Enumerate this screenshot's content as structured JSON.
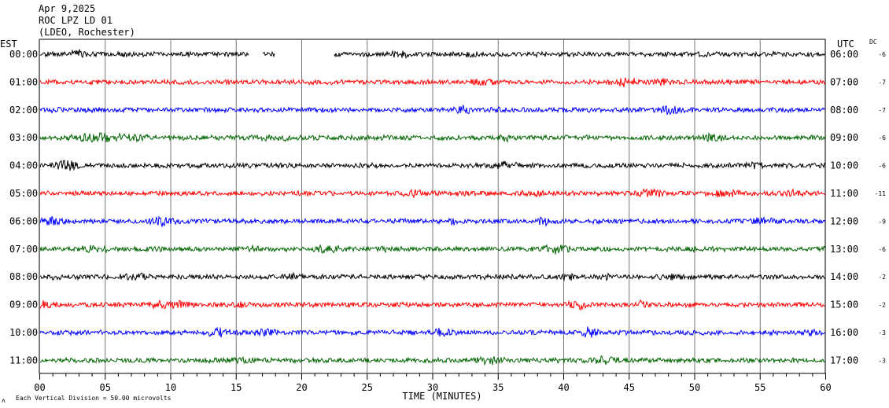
{
  "header": {
    "date": "Apr 9,2025",
    "station": "ROC LPZ LD 01",
    "network": "(LDEO, Rochester)"
  },
  "left_tz": "EST",
  "right_tz": "UTC",
  "dc_label": "DC",
  "footer": {
    "scale_note": "Each Vertical Division =   50.00 microvolts",
    "corner_mark": "ʌ"
  },
  "chart_data": {
    "type": "line",
    "title": "",
    "xlabel": "TIME (MINUTES)",
    "ylabel": "",
    "xlim": [
      0,
      60
    ],
    "x_ticks": [
      "00",
      "05",
      "10",
      "15",
      "20",
      "25",
      "30",
      "35",
      "40",
      "45",
      "50",
      "55",
      "60"
    ],
    "grid": true,
    "rows": [
      {
        "local": "00:00",
        "utc": "06:00",
        "dc": "-6",
        "color": "#000000",
        "gaps": [
          [
            16.0,
            17.0
          ],
          [
            18.0,
            22.5
          ]
        ]
      },
      {
        "local": "01:00",
        "utc": "07:00",
        "dc": "-7",
        "color": "#ff0000",
        "gaps": []
      },
      {
        "local": "02:00",
        "utc": "08:00",
        "dc": "-7",
        "color": "#0000ff",
        "gaps": []
      },
      {
        "local": "03:00",
        "utc": "09:00",
        "dc": "-6",
        "color": "#006400",
        "gaps": []
      },
      {
        "local": "04:00",
        "utc": "10:00",
        "dc": "-6",
        "color": "#000000",
        "gaps": []
      },
      {
        "local": "05:00",
        "utc": "11:00",
        "dc": "-11",
        "color": "#ff0000",
        "gaps": []
      },
      {
        "local": "06:00",
        "utc": "12:00",
        "dc": "-9",
        "color": "#0000ff",
        "gaps": []
      },
      {
        "local": "07:00",
        "utc": "13:00",
        "dc": "-6",
        "color": "#006400",
        "gaps": []
      },
      {
        "local": "08:00",
        "utc": "14:00",
        "dc": "-2",
        "color": "#000000",
        "gaps": []
      },
      {
        "local": "09:00",
        "utc": "15:00",
        "dc": "-2",
        "color": "#ff0000",
        "gaps": []
      },
      {
        "local": "10:00",
        "utc": "16:00",
        "dc": "-3",
        "color": "#0000ff",
        "gaps": []
      },
      {
        "local": "11:00",
        "utc": "17:00",
        "dc": "-3",
        "color": "#006400",
        "gaps": []
      }
    ]
  }
}
